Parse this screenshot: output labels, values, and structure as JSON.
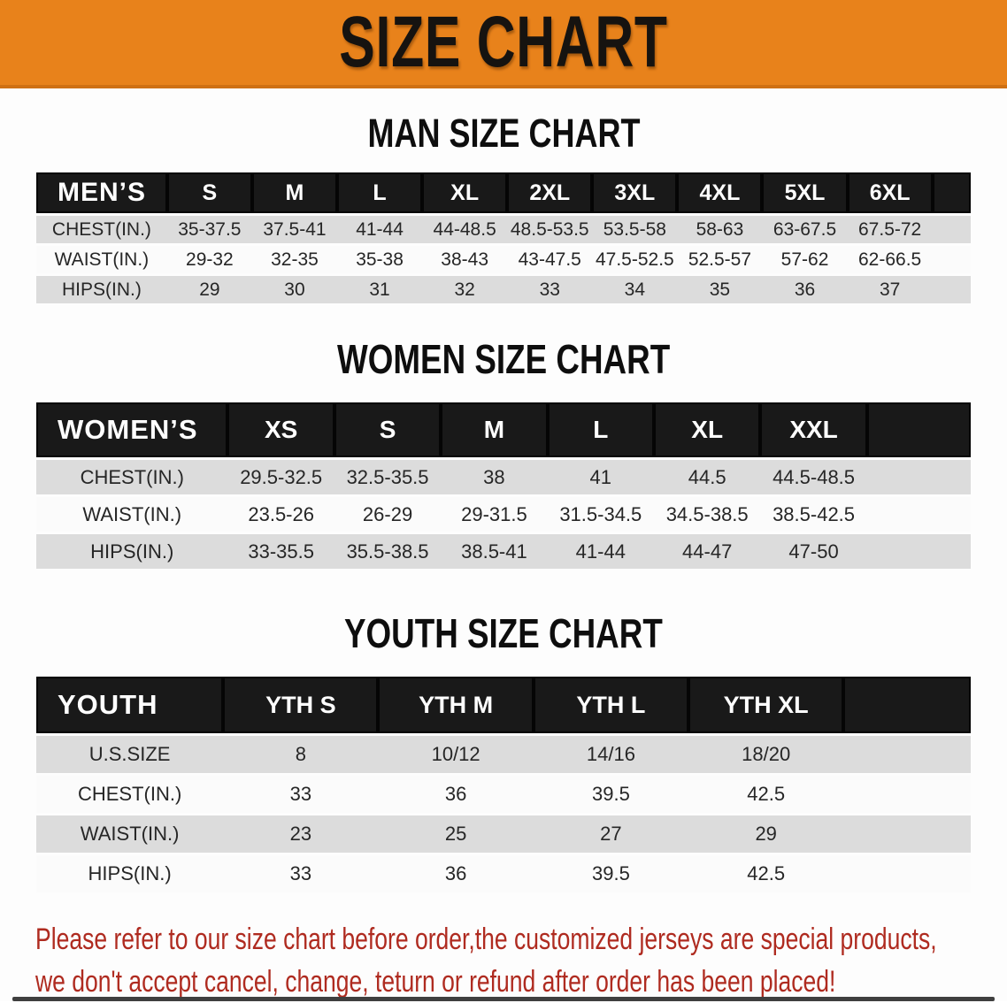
{
  "banner": {
    "title": "SIZE CHART"
  },
  "men_chart": {
    "title": "MAN SIZE CHART",
    "header_label": "MEN’S",
    "sizes": [
      "S",
      "M",
      "L",
      "XL",
      "2XL",
      "3XL",
      "4XL",
      "5XL",
      "6XL"
    ],
    "rows": [
      {
        "label": "CHEST(IN.)",
        "values": [
          "35-37.5",
          "37.5-41",
          "41-44",
          "44-48.5",
          "48.5-53.5",
          "53.5-58",
          "58-63",
          "63-67.5",
          "67.5-72"
        ]
      },
      {
        "label": "WAIST(IN.)",
        "values": [
          "29-32",
          "32-35",
          "35-38",
          "38-43",
          "43-47.5",
          "47.5-52.5",
          "52.5-57",
          "57-62",
          "62-66.5"
        ]
      },
      {
        "label": "HIPS(IN.)",
        "values": [
          "29",
          "30",
          "31",
          "32",
          "33",
          "34",
          "35",
          "36",
          "37"
        ]
      }
    ]
  },
  "women_chart": {
    "title": "WOMEN SIZE CHART",
    "header_label": "WOMEN’S",
    "sizes": [
      "XS",
      "S",
      "M",
      "L",
      "XL",
      "XXL"
    ],
    "rows": [
      {
        "label": "CHEST(IN.)",
        "values": [
          "29.5-32.5",
          "32.5-35.5",
          "38",
          "41",
          "44.5",
          "44.5-48.5"
        ]
      },
      {
        "label": "WAIST(IN.)",
        "values": [
          "23.5-26",
          "26-29",
          "29-31.5",
          "31.5-34.5",
          "34.5-38.5",
          "38.5-42.5"
        ]
      },
      {
        "label": "HIPS(IN.)",
        "values": [
          "33-35.5",
          "35.5-38.5",
          "38.5-41",
          "41-44",
          "44-47",
          "47-50"
        ]
      }
    ]
  },
  "youth_chart": {
    "title": "YOUTH SIZE CHART",
    "header_label": "YOUTH",
    "sizes": [
      "YTH S",
      "YTH M",
      "YTH L",
      "YTH XL"
    ],
    "rows": [
      {
        "label": "U.S.SIZE",
        "values": [
          "8",
          "10/12",
          "14/16",
          "18/20"
        ]
      },
      {
        "label": "CHEST(IN.)",
        "values": [
          "33",
          "36",
          "39.5",
          "42.5"
        ]
      },
      {
        "label": "WAIST(IN.)",
        "values": [
          "23",
          "25",
          "27",
          "29"
        ]
      },
      {
        "label": "HIPS(IN.)",
        "values": [
          "33",
          "36",
          "39.5",
          "42.5"
        ]
      }
    ]
  },
  "footer_note": {
    "line1": "Please refer to our size chart before order,the customized jerseys are special products,",
    "line2": "we don't accept cancel, change, teturn or refund after order has been placed!"
  },
  "colors": {
    "banner_bg": "#E8821B",
    "table_header_bg": "#191919",
    "row_gray": "#DCDCDC",
    "row_white": "#FBFBFB",
    "note_red": "#AF2B20"
  }
}
